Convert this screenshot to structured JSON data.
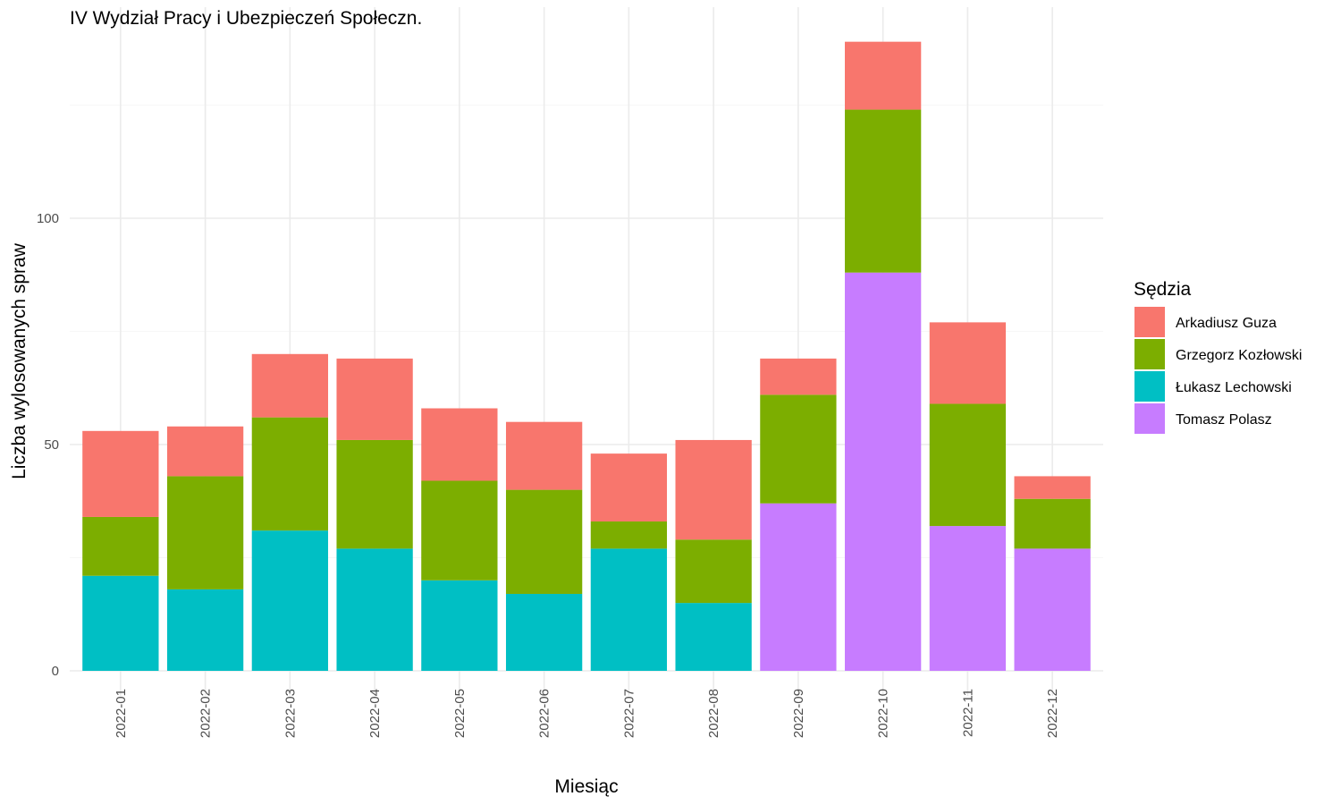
{
  "chart_data": {
    "type": "bar",
    "stacked": true,
    "title": "IV Wydział Pracy i Ubezpieczeń Społeczn.",
    "xlabel": "Miesiąc",
    "ylabel": "Liczba wylosowanych spraw",
    "ylim": [
      -5,
      140
    ],
    "yticks": [
      0,
      50,
      100
    ],
    "grid": true,
    "legend": {
      "title": "Sędzia",
      "position": "right"
    },
    "categories": [
      "2022-01",
      "2022-02",
      "2022-03",
      "2022-04",
      "2022-05",
      "2022-06",
      "2022-07",
      "2022-08",
      "2022-09",
      "2022-10",
      "2022-11",
      "2022-12"
    ],
    "series": [
      {
        "name": "Arkadiusz Guza",
        "color": "#F8766D",
        "values": [
          19,
          11,
          14,
          18,
          16,
          15,
          15,
          22,
          8,
          15,
          18,
          5
        ]
      },
      {
        "name": "Grzegorz Kozłowski",
        "color": "#7CAE00",
        "values": [
          13,
          25,
          25,
          24,
          22,
          23,
          6,
          14,
          24,
          36,
          27,
          11
        ]
      },
      {
        "name": "Łukasz Lechowski",
        "color": "#00BFC4",
        "values": [
          21,
          18,
          31,
          27,
          20,
          17,
          27,
          15,
          0,
          0,
          0,
          0
        ]
      },
      {
        "name": "Tomasz Polasz",
        "color": "#C77CFF",
        "values": [
          0,
          0,
          0,
          0,
          0,
          0,
          0,
          0,
          37,
          88,
          32,
          27
        ]
      }
    ]
  }
}
